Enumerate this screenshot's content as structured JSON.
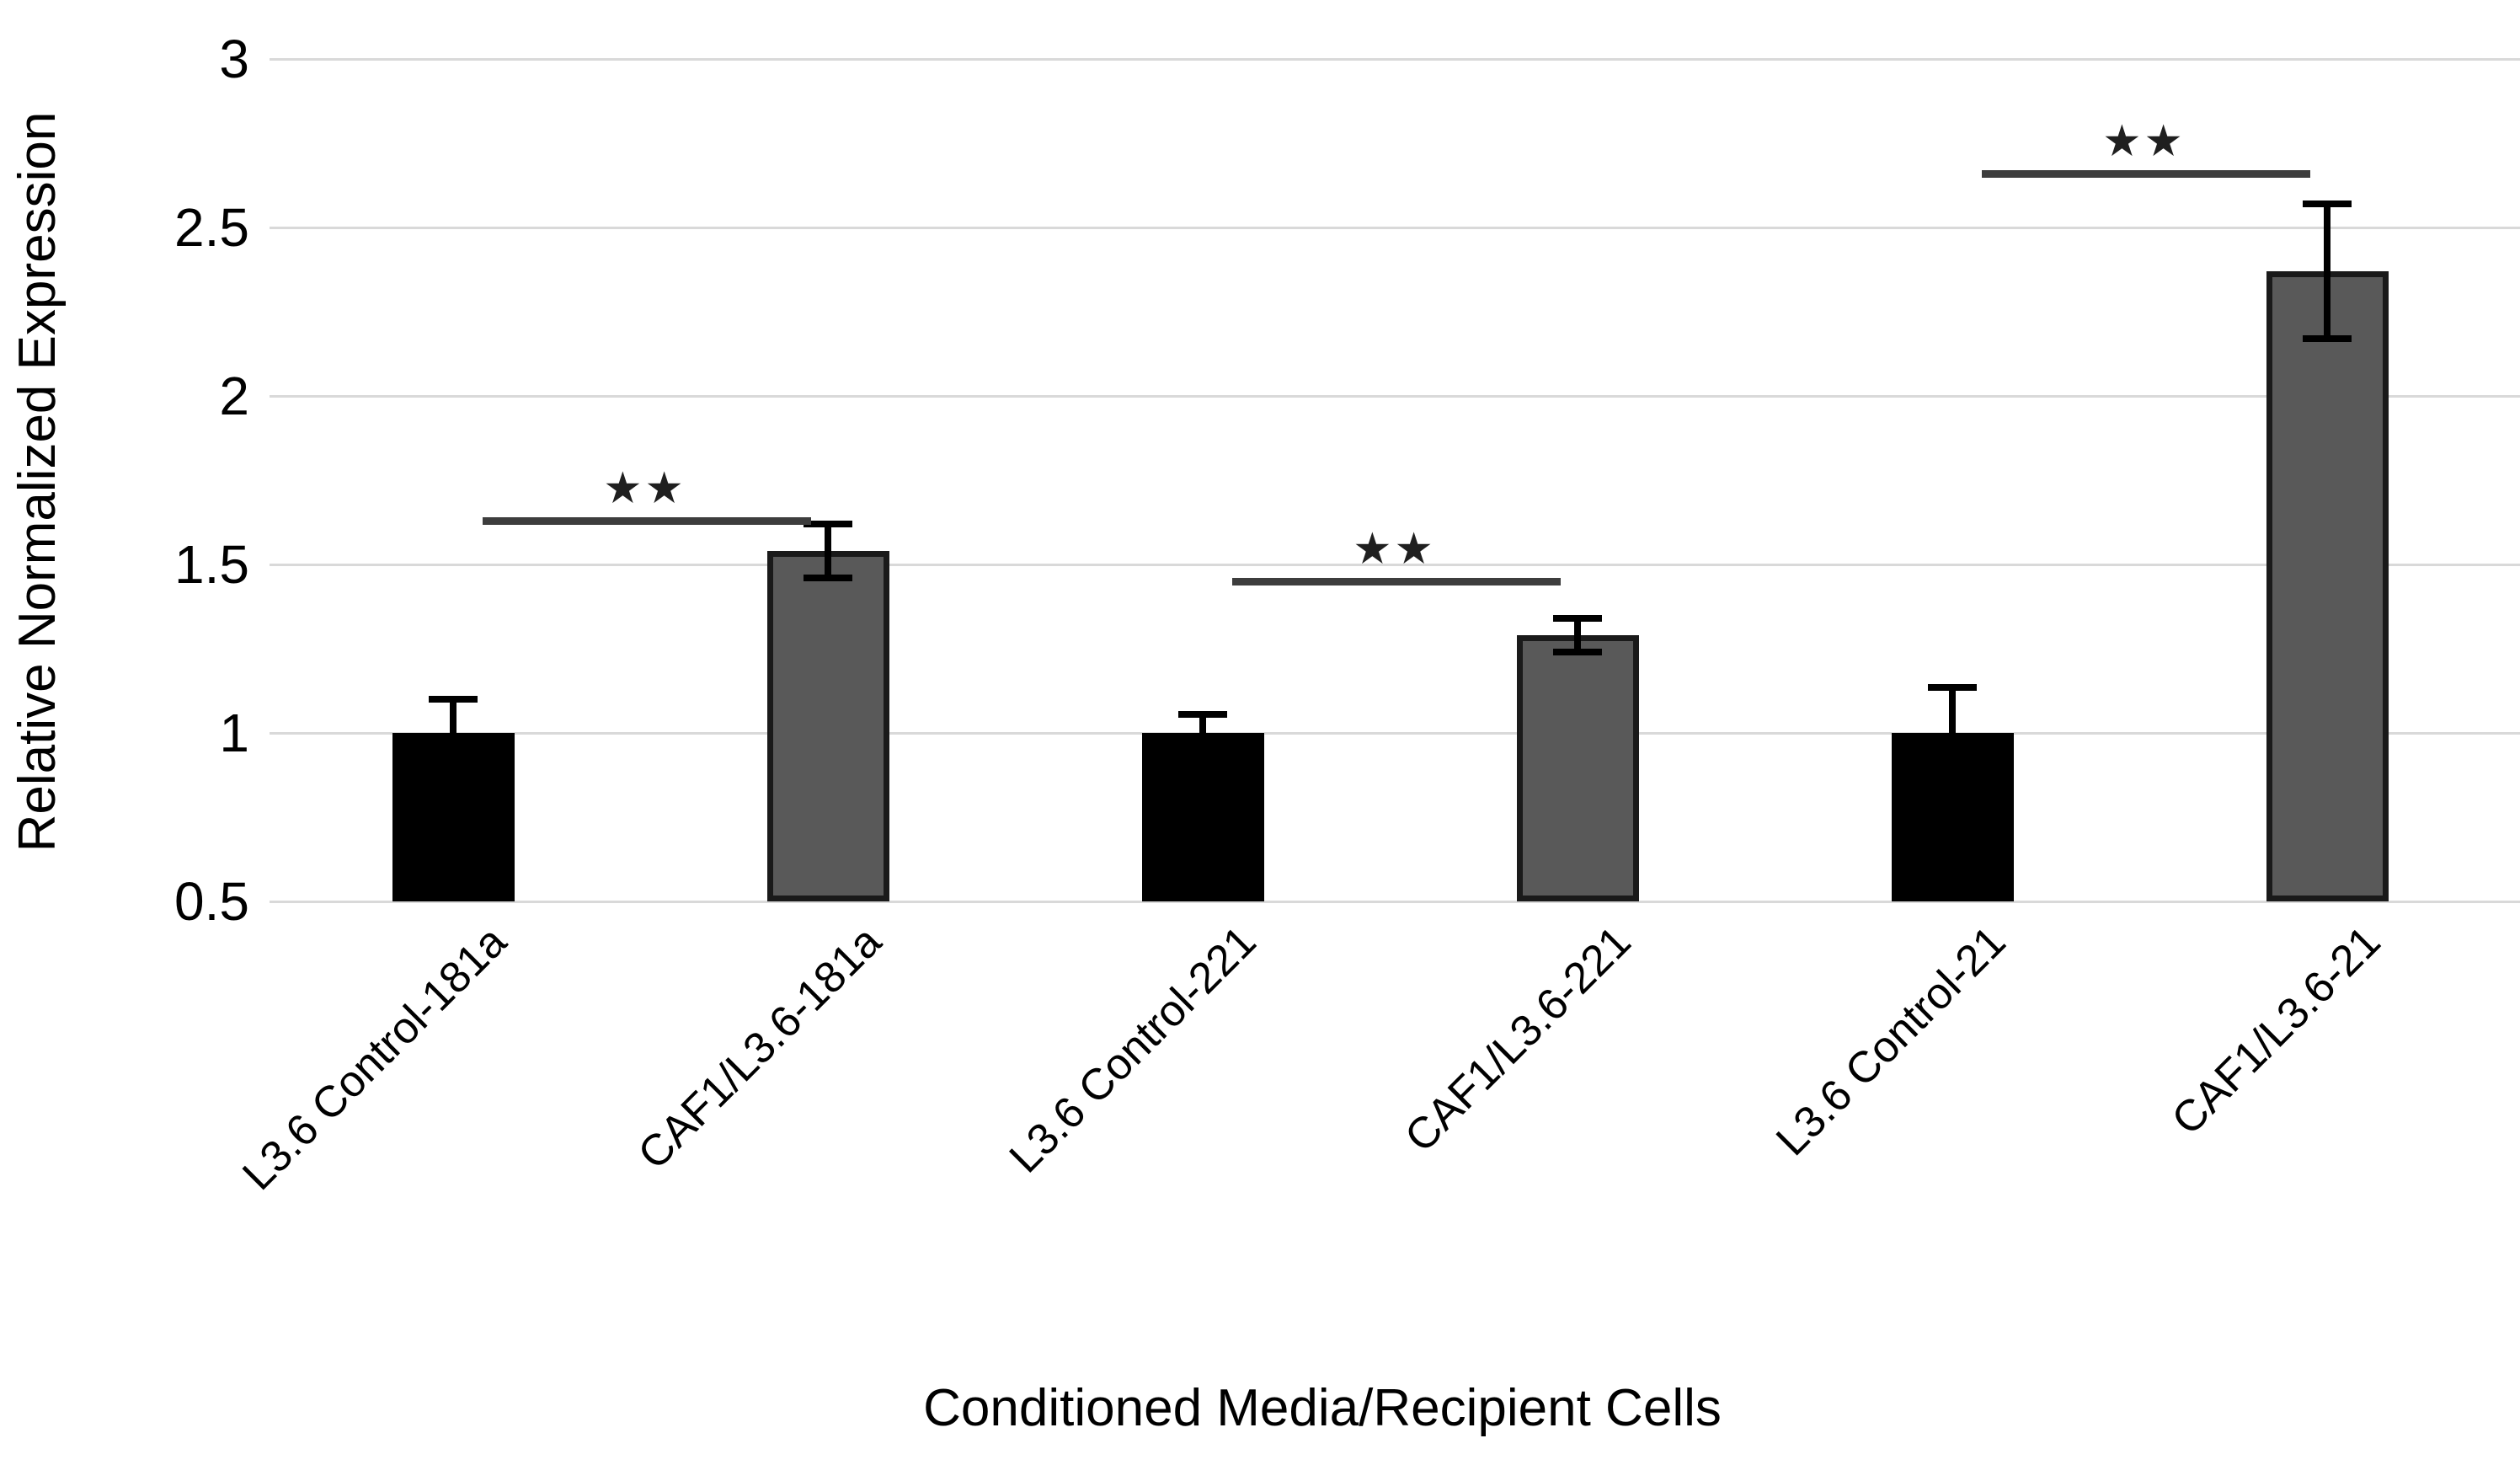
{
  "figure": {
    "background": "#ffffff",
    "text_color": "#000000"
  },
  "chart_data": {
    "type": "bar",
    "title": "",
    "xlabel": "Conditioned Media/Recipient Cells",
    "ylabel": "Relative Normalized Expression",
    "categories": [
      "L3.6 Control-181a",
      "CAF1/L3.6-181a",
      "L3.6 Control-221",
      "CAF1/L3.6-221",
      "L3.6 Control-21",
      "CAF1/L3.6-21"
    ],
    "values": [
      1.0,
      1.54,
      1.0,
      1.29,
      1.0,
      2.37
    ],
    "errors": [
      0.09,
      0.07,
      0.045,
      0.04,
      0.125,
      0.19
    ],
    "bar_colors": [
      "#000000",
      "#595959",
      "#000000",
      "#595959",
      "#000000",
      "#595959"
    ],
    "bar_border_colors": [
      "#000000",
      "#1a1a1a",
      "#000000",
      "#1a1a1a",
      "#000000",
      "#1a1a1a"
    ],
    "ylim": [
      0.5,
      3.0
    ],
    "yticks": [
      3,
      2.5,
      2,
      1.5,
      1,
      0.5
    ],
    "ytick_labels": [
      "3",
      "2.5",
      "2",
      "1.5",
      "1",
      "0.5"
    ],
    "grid": true,
    "legend": "none",
    "gridline_color": "#d9d9d9",
    "error_bar_color": "#000000",
    "sig_line_color": "#3d3d3d",
    "significance": [
      {
        "pair": [
          0,
          1
        ],
        "label": "★★",
        "line_y": 1.64
      },
      {
        "pair": [
          2,
          3
        ],
        "label": "★★",
        "line_y": 1.46
      },
      {
        "pair": [
          4,
          5
        ],
        "label": "★★",
        "line_y": 2.67
      }
    ]
  }
}
